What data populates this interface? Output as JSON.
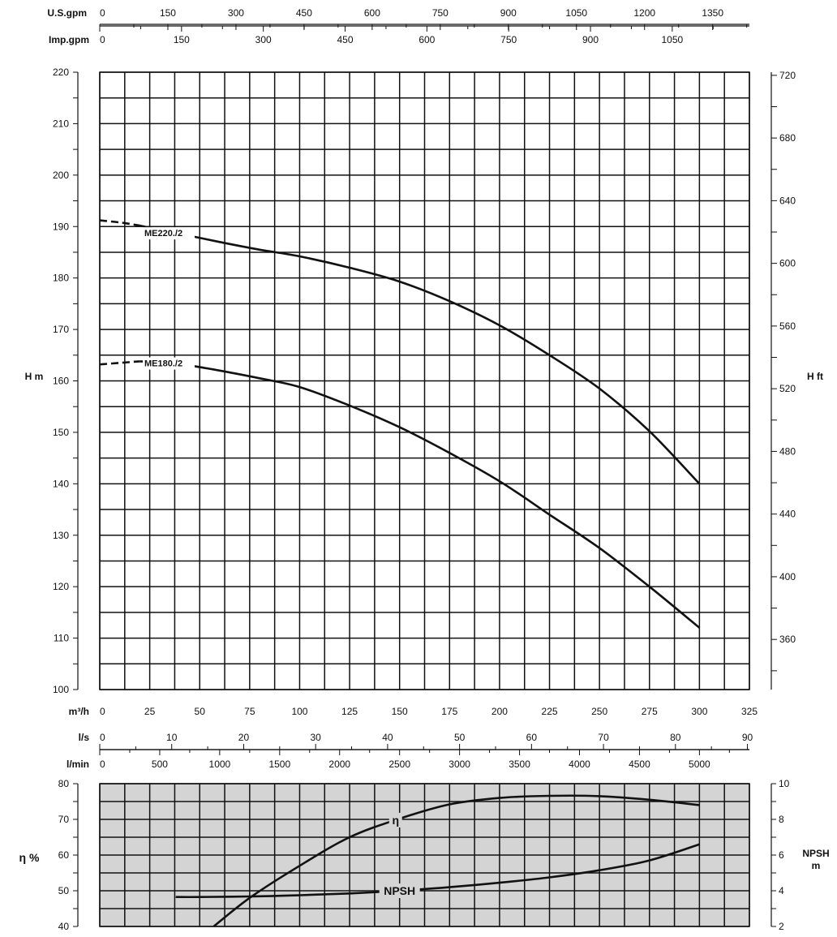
{
  "chart_data": [
    {
      "type": "line",
      "title": "",
      "xlabel": "m³/h",
      "ylabel": "H m",
      "ylabel_right": "H ft",
      "xlim": [
        0,
        325
      ],
      "ylim": [
        100,
        220
      ],
      "ylim_right_ft": [
        328,
        722
      ],
      "x_ticks": [
        0,
        25,
        50,
        75,
        100,
        125,
        150,
        175,
        200,
        225,
        250,
        275,
        300,
        325
      ],
      "y_ticks": [
        100,
        110,
        120,
        130,
        140,
        150,
        160,
        170,
        180,
        190,
        200,
        210,
        220
      ],
      "y_right_ticks": [
        360,
        400,
        440,
        480,
        520,
        560,
        600,
        640,
        680,
        720
      ],
      "secondary_x_axes": [
        {
          "unit": "U.S.gpm",
          "ticks": [
            0,
            150,
            300,
            450,
            600,
            750,
            900,
            1050,
            1200,
            1350
          ]
        },
        {
          "unit": "Imp.gpm",
          "ticks": [
            0,
            150,
            300,
            450,
            600,
            750,
            900,
            1050
          ]
        },
        {
          "unit": "l/s",
          "ticks": [
            0,
            10,
            20,
            30,
            40,
            50,
            60,
            70,
            80,
            90
          ]
        },
        {
          "unit": "l/min",
          "ticks": [
            0,
            500,
            1000,
            1500,
            2000,
            2500,
            3000,
            3500,
            4000,
            4500,
            5000
          ]
        }
      ],
      "grid": true,
      "series": [
        {
          "name": "ME220./2",
          "x": [
            0,
            10,
            20,
            30,
            40,
            60,
            80,
            100,
            125,
            150,
            175,
            200,
            225,
            250,
            275,
            300
          ],
          "y": [
            191.2,
            190.8,
            190.2,
            189.3,
            188.6,
            187.0,
            185.5,
            184.2,
            182.0,
            179.3,
            175.5,
            170.8,
            165.0,
            158.5,
            150.2,
            140.0
          ],
          "dashed_until_x": 20
        },
        {
          "name": "ME180./2",
          "x": [
            0,
            10,
            20,
            30,
            40,
            60,
            80,
            100,
            125,
            150,
            175,
            200,
            225,
            250,
            275,
            300
          ],
          "y": [
            163.2,
            163.5,
            163.8,
            163.6,
            163.3,
            162.0,
            160.5,
            158.8,
            155.2,
            151.0,
            146.0,
            140.5,
            134.0,
            127.5,
            120.0,
            112.0
          ],
          "dashed_until_x": 20
        }
      ]
    },
    {
      "type": "line",
      "title": "",
      "xlim": [
        0,
        325
      ],
      "ylabel": "η %",
      "ylim": [
        40,
        80
      ],
      "y_ticks": [
        40,
        50,
        60,
        70,
        80
      ],
      "ylabel_right": "NPSH m",
      "ylim_right": [
        2,
        10
      ],
      "y_right_ticks": [
        2,
        4,
        6,
        8,
        10
      ],
      "grid": true,
      "series": [
        {
          "name": "η",
          "x": [
            57,
            75,
            100,
            125,
            150,
            175,
            200,
            225,
            250,
            275,
            300
          ],
          "y": [
            40.0,
            48.0,
            57.0,
            65.0,
            70.2,
            74.2,
            76.0,
            76.6,
            76.5,
            75.5,
            74.0
          ]
        },
        {
          "name": "NPSH",
          "axis": "right",
          "x": [
            38,
            50,
            75,
            100,
            125,
            150,
            175,
            200,
            225,
            250,
            275,
            300
          ],
          "y": [
            3.65,
            3.65,
            3.68,
            3.75,
            3.85,
            4.0,
            4.2,
            4.45,
            4.75,
            5.15,
            5.7,
            6.6
          ]
        }
      ]
    }
  ]
}
